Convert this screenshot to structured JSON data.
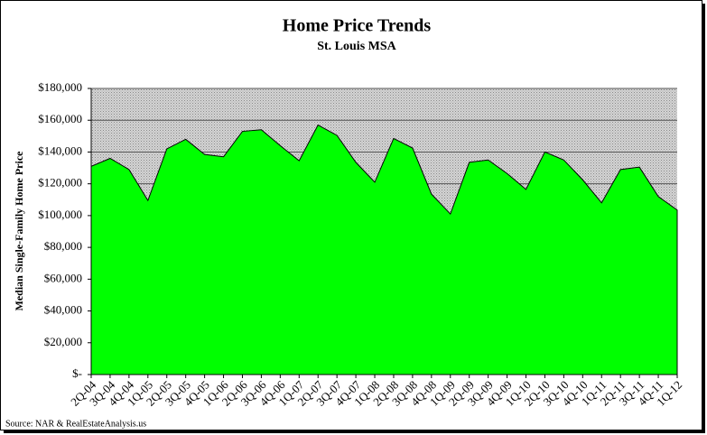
{
  "chart_data": {
    "type": "area",
    "title": "Home Price Trends",
    "subtitle": "St. Louis MSA",
    "y_label": "Median Single-Family Home Price",
    "source": "Source: NAR & RealEstateAnalysis.us",
    "categories": [
      "2Q-04",
      "3Q-04",
      "4Q-04",
      "1Q-05",
      "2Q-05",
      "3Q-05",
      "4Q-05",
      "1Q-06",
      "2Q-06",
      "3Q-06",
      "4Q-06",
      "1Q-07",
      "2Q-07",
      "3Q-07",
      "4Q-07",
      "1Q-08",
      "2Q-08",
      "3Q-08",
      "4Q-08",
      "1Q-09",
      "2Q-09",
      "3Q-09",
      "4Q-09",
      "1Q-10",
      "2Q-10",
      "3Q-10",
      "4Q-10",
      "1Q-11",
      "2Q-11",
      "3Q-11",
      "4Q-11",
      "1Q-12"
    ],
    "values": [
      131000,
      136000,
      129000,
      109500,
      142000,
      148000,
      138500,
      137000,
      153000,
      154000,
      144000,
      134500,
      157000,
      150500,
      133500,
      121000,
      148500,
      142500,
      113500,
      101000,
      133500,
      135000,
      126500,
      116500,
      140000,
      135000,
      122500,
      108000,
      129000,
      130500,
      112000,
      103500
    ],
    "color": "#00ff00",
    "ylim": [
      0,
      180000
    ],
    "yticks": [
      {
        "value": 0,
        "label": "$-"
      },
      {
        "value": 20000,
        "label": "$20,000"
      },
      {
        "value": 40000,
        "label": "$40,000"
      },
      {
        "value": 60000,
        "label": "$60,000"
      },
      {
        "value": 80000,
        "label": "$80,000"
      },
      {
        "value": 100000,
        "label": "$100,000"
      },
      {
        "value": 120000,
        "label": "$120,000"
      },
      {
        "value": 140000,
        "label": "$140,000"
      },
      {
        "value": 160000,
        "label": "$160,000"
      },
      {
        "value": 180000,
        "label": "$180,000"
      }
    ],
    "grid": true
  }
}
